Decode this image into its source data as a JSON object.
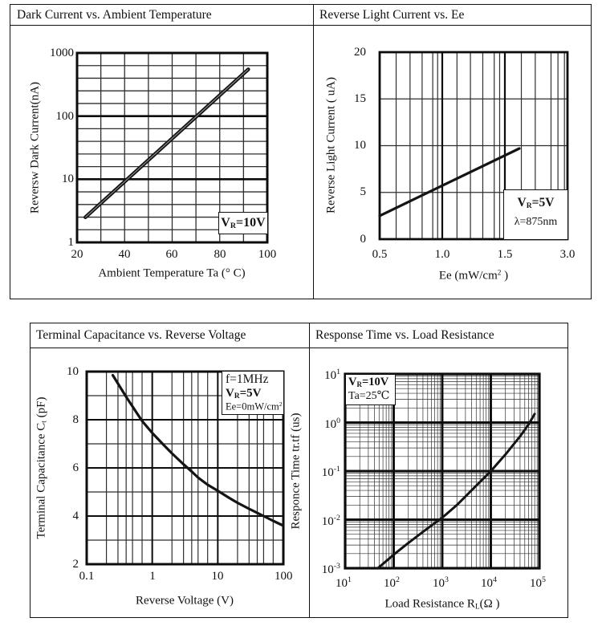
{
  "panels": [
    {
      "title": "Dark Current vs. Ambient Temperature"
    },
    {
      "title": "Reverse Light Current vs. Ee"
    },
    {
      "title": "Terminal Capacitance vs. Reverse Voltage"
    },
    {
      "title": "Response Time vs. Load Resistance"
    }
  ],
  "colors": {
    "line": "#141414",
    "grid_minor": "#2e2e2e",
    "grid_major": "#0c0c0c",
    "background": "#ffffff"
  },
  "chart_data": [
    {
      "type": "line",
      "title": "Dark Current vs. Ambient Temperature",
      "xlabel": {
        "pre": "Ambient Temperature Ta (° C)"
      },
      "ylabel": {
        "pre": "Reversw Dark Current(nA)"
      },
      "x_axis": {
        "type": "linear",
        "min": 20,
        "max": 100,
        "ticks": [
          "20",
          "40",
          "60",
          "80",
          "100"
        ],
        "grid_major": [],
        "grid_minor": [
          30,
          40,
          50,
          60,
          70,
          80,
          90
        ]
      },
      "y_axis": {
        "type": "log",
        "min": 1,
        "max": 1000,
        "ticks": [
          "1000",
          "100",
          "10",
          "1"
        ],
        "grid_major": [
          10,
          100
        ],
        "grid_minor": [
          {
            "f": 0.0667
          },
          {
            "f": 0.1333
          },
          {
            "f": 0.2
          },
          {
            "f": 0.2667
          },
          {
            "f": 0.4
          },
          {
            "f": 0.4667
          },
          {
            "f": 0.5333
          },
          {
            "f": 0.6
          },
          {
            "f": 0.7333
          },
          {
            "f": 0.8
          },
          {
            "f": 0.8667
          },
          {
            "f": 0.9333
          }
        ]
      },
      "series": [
        {
          "name": "dark-current",
          "points": [
            [
              23.5,
              2.5
            ],
            [
              92,
              550
            ]
          ]
        }
      ],
      "annotations": [
        {
          "pre": "V",
          "sub": "R",
          "post": "=10V"
        }
      ],
      "legend": false,
      "grid": true
    },
    {
      "type": "line",
      "title": "Reverse Light Current vs. Ee",
      "xlabel": {
        "pre": "Ee  (mW/cm",
        "sup": "2",
        "post": " )"
      },
      "ylabel": {
        "pre": "Reverse Light Current ( uA)"
      },
      "x_axis": {
        "type": "segments",
        "segments": [
          [
            0.5,
            1.0
          ],
          [
            1.0,
            1.5
          ],
          [
            1.5,
            3.0
          ]
        ],
        "ticks": [
          "0.5",
          "1.0",
          "1.5",
          "3.0"
        ],
        "grid_major": [
          1.0,
          1.5
        ],
        "grid_minor": [
          0.6,
          0.7,
          0.8,
          0.9,
          0.95,
          1.1,
          1.2,
          1.3,
          1.4,
          1.45,
          1.8,
          2.1,
          2.5,
          2.7,
          2.9
        ]
      },
      "y_axis": {
        "type": "linear",
        "min": 0,
        "max": 20,
        "ticks": [
          "20",
          "15",
          "10",
          "5",
          "0"
        ],
        "grid_major": [],
        "grid_minor": [
          5,
          10,
          15
        ]
      },
      "series": [
        {
          "name": "light-current",
          "points": [
            [
              0.5,
              2.5
            ],
            [
              1.76,
              9.7
            ]
          ]
        }
      ],
      "annotations": [
        {
          "pre": "V",
          "sub": "R",
          "post": "=5V"
        },
        {
          "pre": "λ=875nm"
        }
      ],
      "legend": false,
      "grid": true
    },
    {
      "type": "line",
      "title": "Terminal Capacitance vs. Reverse Voltage",
      "xlabel": {
        "pre": "Reverse Voltage (V)"
      },
      "ylabel": {
        "pre": "Terminal Capacitance C",
        "sub": "t",
        "post": " (pF)"
      },
      "x_axis": {
        "type": "log",
        "min": 0.1,
        "max": 100,
        "ticks": [
          "0.1",
          "1",
          "10",
          "100"
        ],
        "grid_major": [
          1,
          10
        ],
        "grid_minor": [
          0.2,
          0.3,
          0.4,
          0.5,
          0.7,
          2,
          3,
          4,
          5,
          7,
          20,
          30,
          40,
          50,
          70
        ]
      },
      "y_axis": {
        "type": "linear",
        "min": 2,
        "max": 10,
        "ticks": [
          "10",
          "8",
          "6",
          "4",
          "2"
        ],
        "grid_major": [
          4,
          6,
          8
        ],
        "grid_minor": [
          3,
          5,
          7,
          9
        ]
      },
      "series": [
        {
          "name": "capacitance",
          "points": [
            [
              0.25,
              9.85
            ],
            [
              0.3,
              9.5
            ],
            [
              0.4,
              8.95
            ],
            [
              0.5,
              8.55
            ],
            [
              0.7,
              7.95
            ],
            [
              1,
              7.45
            ],
            [
              1.5,
              6.95
            ],
            [
              2,
              6.6
            ],
            [
              3,
              6.15
            ],
            [
              4,
              5.85
            ],
            [
              5,
              5.6
            ],
            [
              7,
              5.3
            ],
            [
              10,
              5.05
            ],
            [
              15,
              4.75
            ],
            [
              20,
              4.55
            ],
            [
              30,
              4.3
            ],
            [
              50,
              4.0
            ],
            [
              70,
              3.8
            ],
            [
              100,
              3.6
            ]
          ]
        }
      ],
      "annotations": [
        {
          "pre": "f=1MHz"
        },
        {
          "pre": "V",
          "sub": "R",
          "post": "=5V"
        },
        {
          "pre": "Ee=0mW/cm",
          "sup": "2"
        }
      ],
      "legend": false,
      "grid": true
    },
    {
      "type": "line",
      "title": "Response Time vs. Load Resistance",
      "xlabel": {
        "pre": "Load Resistance R",
        "sub": "L",
        "post": "(Ω )"
      },
      "ylabel": {
        "pre": "Responce Time tr.tf (us)"
      },
      "x_axis": {
        "type": "log",
        "min": 10,
        "max": 100000,
        "ticks": [
          {
            "base": "10",
            "exp": "1"
          },
          {
            "base": "10",
            "exp": "2"
          },
          {
            "base": "10",
            "exp": "3"
          },
          {
            "base": "10",
            "exp": "4"
          },
          {
            "base": "10",
            "exp": "5"
          }
        ],
        "grid_major": [
          100,
          1000,
          10000
        ],
        "grid_minor": [
          20,
          30,
          40,
          50,
          60,
          70,
          80,
          90,
          200,
          300,
          400,
          500,
          600,
          700,
          800,
          900,
          2000,
          3000,
          4000,
          5000,
          6000,
          7000,
          8000,
          9000,
          20000,
          30000,
          40000,
          50000,
          60000,
          70000,
          80000,
          90000
        ]
      },
      "y_axis": {
        "type": "log",
        "min": 0.001,
        "max": 10,
        "ticks": [
          {
            "base": "10",
            "exp": "1"
          },
          {
            "base": "10",
            "exp": "0"
          },
          {
            "base": "10",
            "exp": "-1"
          },
          {
            "base": "10",
            "exp": "-2"
          },
          {
            "base": "10",
            "exp": "-3"
          }
        ],
        "grid_major": [
          0.01,
          0.1,
          1
        ],
        "grid_minor": [
          0.002,
          0.003,
          0.004,
          0.005,
          0.006,
          0.007,
          0.008,
          0.009,
          0.02,
          0.03,
          0.04,
          0.05,
          0.06,
          0.07,
          0.08,
          0.09,
          0.2,
          0.3,
          0.4,
          0.5,
          0.6,
          0.7,
          0.8,
          0.9,
          2,
          3,
          4,
          5,
          6,
          7,
          8,
          9
        ]
      },
      "series": [
        {
          "name": "response-time",
          "points": [
            [
              47,
              0.001
            ],
            [
              70,
              0.0014
            ],
            [
              100,
              0.0019
            ],
            [
              200,
              0.0033
            ],
            [
              400,
              0.0056
            ],
            [
              700,
              0.0085
            ],
            [
              1000,
              0.011
            ],
            [
              2000,
              0.02
            ],
            [
              4000,
              0.04
            ],
            [
              7000,
              0.07
            ],
            [
              10000,
              0.1
            ],
            [
              20000,
              0.22
            ],
            [
              40000,
              0.52
            ],
            [
              60000,
              0.92
            ],
            [
              80000,
              1.5
            ]
          ]
        }
      ],
      "annotations": [
        {
          "pre": "V",
          "sub": "R",
          "post": "=10V"
        },
        {
          "pre": "Ta=25℃"
        }
      ],
      "legend": false,
      "grid": true
    }
  ]
}
